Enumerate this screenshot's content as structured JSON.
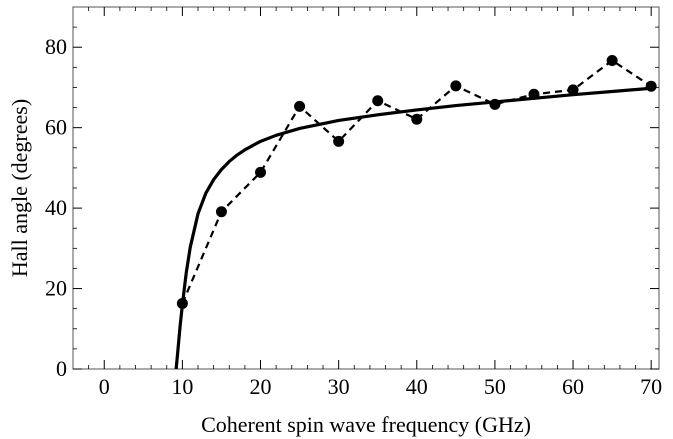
{
  "chart_data": {
    "type": "line",
    "title": "",
    "xlabel": "Coherent spin wave frequency (GHz)",
    "ylabel": "Hall angle (degrees)",
    "xlim": [
      -4,
      71
    ],
    "ylim": [
      0,
      90
    ],
    "xticks": [
      0,
      10,
      20,
      30,
      40,
      50,
      60,
      70
    ],
    "yticks": [
      0,
      20,
      40,
      60,
      80
    ],
    "grid": false,
    "legend": "none",
    "series": [
      {
        "style": "dashed-with-markers",
        "color": "#000000",
        "x": [
          10,
          15,
          20,
          25,
          30,
          35,
          40,
          45,
          50,
          55,
          60,
          65,
          70
        ],
        "y": [
          16.3,
          39.1,
          48.9,
          65.3,
          56.6,
          66.7,
          62.1,
          70.4,
          65.8,
          68.3,
          69.4,
          76.7,
          70.3
        ]
      },
      {
        "style": "solid-fit-curve",
        "color": "#000000",
        "x": [
          9.2,
          9.4,
          9.7,
          10,
          10.5,
          11,
          12,
          13,
          14,
          15,
          16,
          17,
          18,
          20,
          22,
          25,
          30,
          35,
          40,
          45,
          50,
          55,
          60,
          65,
          70
        ],
        "y": [
          0,
          4.1,
          10.5,
          16.0,
          24.0,
          30.2,
          38.6,
          43.7,
          47.1,
          49.6,
          51.6,
          53.2,
          54.5,
          56.6,
          58.1,
          59.8,
          61.8,
          63.2,
          64.4,
          65.5,
          66.4,
          67.3,
          68.2,
          69.0,
          69.8
        ]
      }
    ]
  }
}
